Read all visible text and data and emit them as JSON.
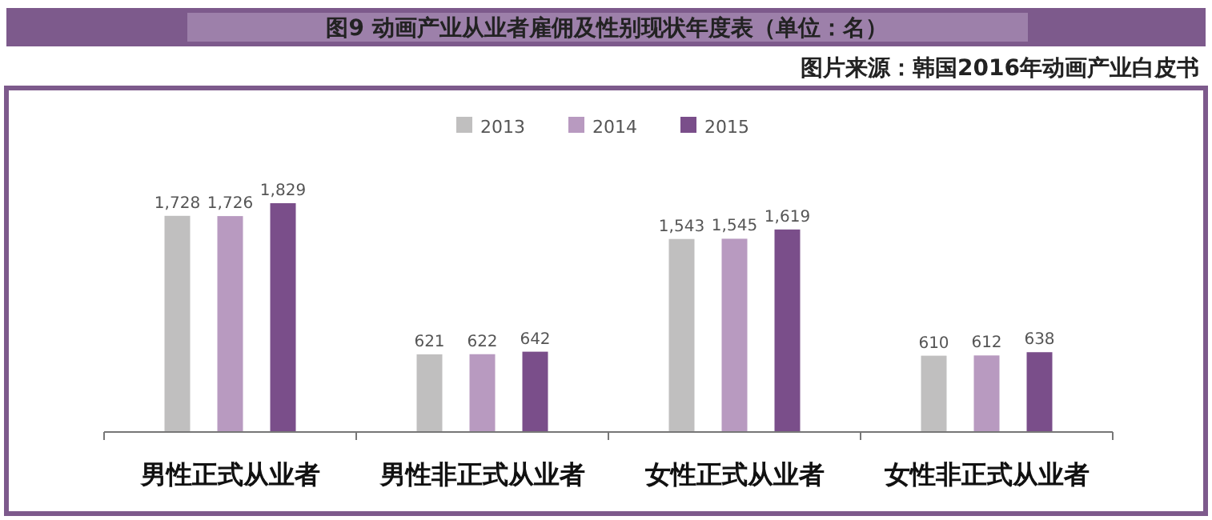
{
  "chart_data": {
    "type": "bar",
    "title": "图9 动画产业从业者雇佣及性别现状年度表（单位：名）",
    "annotations": [
      "图片来源：韩国2016年动画产业白皮书"
    ],
    "categories": [
      "男性正式从业者",
      "男性非正式从业者",
      "女性正式从业者",
      "女性非正式从业者"
    ],
    "series": [
      {
        "name": "2013",
        "color": "#c0bfbf",
        "values": [
          1728,
          621,
          1543,
          610
        ],
        "value_labels": [
          "1,728",
          "621",
          "1,543",
          "610"
        ]
      },
      {
        "name": "2014",
        "color": "#b89ac0",
        "values": [
          1726,
          622,
          1545,
          612
        ],
        "value_labels": [
          "1,726",
          "622",
          "1,545",
          "612"
        ]
      },
      {
        "name": "2015",
        "color": "#7a4e8a",
        "values": [
          1829,
          642,
          1619,
          638
        ],
        "value_labels": [
          "1,829",
          "642",
          "1,619",
          "638"
        ]
      }
    ],
    "ylim": [
      0,
      1829
    ],
    "tick_labels": "x",
    "legend": "top"
  }
}
